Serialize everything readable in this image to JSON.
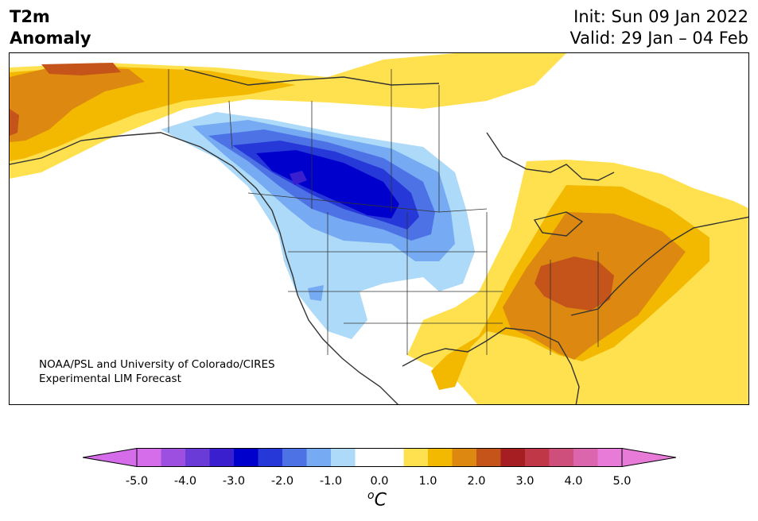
{
  "title": {
    "line1": "T2m",
    "line2": "Anomaly"
  },
  "init": {
    "label": "Init: Sun 09 Jan 2022"
  },
  "valid": {
    "label": "Valid: 29 Jan – 04 Feb"
  },
  "credit": {
    "line1": "NOAA/PSL and University of Colorado/CIRES",
    "line2": "Experimental LIM Forecast"
  },
  "colorbar": {
    "unit_base": "C",
    "unit_prefix": "o",
    "colors": [
      "#d56ce9",
      "#9d4fe0",
      "#6a3bd6",
      "#3a1fcf",
      "#0000cc",
      "#2638d8",
      "#4c72e6",
      "#76aaf2",
      "#aedaf9",
      "#ffffff",
      "#ffffff",
      "#ffe14f",
      "#f3b900",
      "#dd8810",
      "#c4541a",
      "#a61e22",
      "#c03848",
      "#cf4f7c",
      "#db66ad",
      "#e87bd8"
    ],
    "under_color": "#d56ce9",
    "over_color": "#e87bd8",
    "tick_labels": [
      "-5.0",
      "-4.0",
      "-3.0",
      "-2.0",
      "-1.0",
      "0.0",
      "1.0",
      "2.0",
      "3.0",
      "4.0",
      "5.0"
    ]
  },
  "map": {
    "region": "North America",
    "field": "2m temperature anomaly",
    "ocean_color": "#ffffff",
    "border_color": "#333333"
  }
}
